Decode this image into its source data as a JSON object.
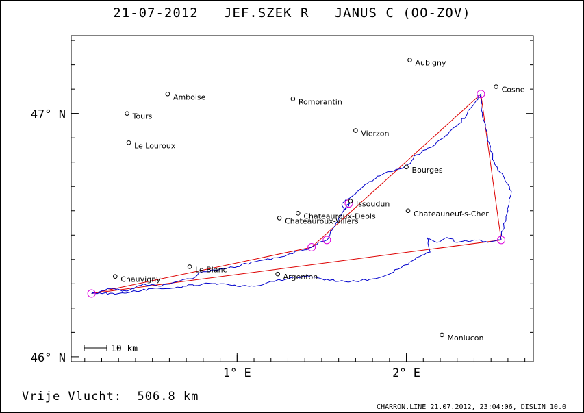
{
  "title": "21-07-2012   JEF.SZEK R   JANUS C (OO-ZOV)",
  "distance_text": "Vrije Vlucht:  506.8 km",
  "footer_text": "CHARRON.LINE 21.07.2012, 23:04:06, DISLIN 10.0",
  "scale_label": "10 km",
  "colors": {
    "track": "#0000cc",
    "task": "#dd0000",
    "turnpoint": "#dd00dd",
    "frame": "#000000"
  },
  "axes": {
    "lon_range": [
      0.02,
      2.75
    ],
    "lat_range": [
      45.98,
      47.32
    ],
    "lat_ticks": [
      {
        "value": 46.0,
        "label": "46° N"
      },
      {
        "value": 47.0,
        "label": "47° N"
      }
    ],
    "lon_ticks": [
      {
        "value": 1.0,
        "label": "1° E"
      },
      {
        "value": 2.0,
        "label": "2° E"
      }
    ]
  },
  "cities": [
    {
      "name": "Aubigny",
      "lon": 2.02,
      "lat": 47.22
    },
    {
      "name": "Cosne",
      "lon": 2.53,
      "lat": 47.11
    },
    {
      "name": "Amboise",
      "lon": 0.59,
      "lat": 47.08
    },
    {
      "name": "Romorantin",
      "lon": 1.33,
      "lat": 47.06
    },
    {
      "name": "Tours",
      "lon": 0.35,
      "lat": 47.0
    },
    {
      "name": "Vierzon",
      "lon": 1.7,
      "lat": 46.93
    },
    {
      "name": "Le Louroux",
      "lon": 0.36,
      "lat": 46.88
    },
    {
      "name": "Bourges",
      "lon": 2.0,
      "lat": 46.78
    },
    {
      "name": "Issoudun",
      "lon": 1.67,
      "lat": 46.64
    },
    {
      "name": "Chateauroux-Deols",
      "lon": 1.36,
      "lat": 46.59
    },
    {
      "name": "Chateauneuf-s-Cher",
      "lon": 2.01,
      "lat": 46.6
    },
    {
      "name": "Chateauroux-Villers",
      "lon": 1.25,
      "lat": 46.57
    },
    {
      "name": "Le Blanc",
      "lon": 0.72,
      "lat": 46.37
    },
    {
      "name": "Chauvigny",
      "lon": 0.28,
      "lat": 46.33
    },
    {
      "name": "Argenton",
      "lon": 1.24,
      "lat": 46.34
    },
    {
      "name": "Monlucon",
      "lon": 2.21,
      "lat": 46.09
    }
  ],
  "turnpoints": [
    {
      "lon": 0.14,
      "lat": 46.26
    },
    {
      "lon": 1.44,
      "lat": 46.45
    },
    {
      "lon": 1.53,
      "lat": 46.48
    },
    {
      "lon": 1.66,
      "lat": 46.63
    },
    {
      "lon": 2.44,
      "lat": 47.08
    },
    {
      "lon": 2.56,
      "lat": 46.48
    }
  ],
  "task_route": [
    {
      "lon": 0.14,
      "lat": 46.26
    },
    {
      "lon": 1.44,
      "lat": 46.45
    },
    {
      "lon": 2.44,
      "lat": 47.08
    },
    {
      "lon": 2.56,
      "lat": 46.48
    },
    {
      "lon": 0.14,
      "lat": 46.26
    }
  ],
  "track": [
    {
      "lon": 0.14,
      "lat": 46.26
    },
    {
      "lon": 0.25,
      "lat": 46.28
    },
    {
      "lon": 0.35,
      "lat": 46.27
    },
    {
      "lon": 0.45,
      "lat": 46.3
    },
    {
      "lon": 0.55,
      "lat": 46.29
    },
    {
      "lon": 0.65,
      "lat": 46.31
    },
    {
      "lon": 0.72,
      "lat": 46.32
    },
    {
      "lon": 0.8,
      "lat": 46.35
    },
    {
      "lon": 0.9,
      "lat": 46.36
    },
    {
      "lon": 1.0,
      "lat": 46.37
    },
    {
      "lon": 1.1,
      "lat": 46.39
    },
    {
      "lon": 1.2,
      "lat": 46.4
    },
    {
      "lon": 1.3,
      "lat": 46.42
    },
    {
      "lon": 1.4,
      "lat": 46.44
    },
    {
      "lon": 1.44,
      "lat": 46.45
    },
    {
      "lon": 1.48,
      "lat": 46.47
    },
    {
      "lon": 1.53,
      "lat": 46.48
    },
    {
      "lon": 1.56,
      "lat": 46.52
    },
    {
      "lon": 1.6,
      "lat": 46.57
    },
    {
      "lon": 1.64,
      "lat": 46.61
    },
    {
      "lon": 1.67,
      "lat": 46.64
    },
    {
      "lon": 1.66,
      "lat": 46.62
    },
    {
      "lon": 1.63,
      "lat": 46.6
    },
    {
      "lon": 1.62,
      "lat": 46.63
    },
    {
      "lon": 1.66,
      "lat": 46.65
    },
    {
      "lon": 1.7,
      "lat": 46.67
    },
    {
      "lon": 1.78,
      "lat": 46.72
    },
    {
      "lon": 1.86,
      "lat": 46.75
    },
    {
      "lon": 1.94,
      "lat": 46.77
    },
    {
      "lon": 2.0,
      "lat": 46.78
    },
    {
      "lon": 2.06,
      "lat": 46.83
    },
    {
      "lon": 2.14,
      "lat": 46.86
    },
    {
      "lon": 2.22,
      "lat": 46.9
    },
    {
      "lon": 2.3,
      "lat": 46.95
    },
    {
      "lon": 2.36,
      "lat": 47.0
    },
    {
      "lon": 2.41,
      "lat": 47.05
    },
    {
      "lon": 2.44,
      "lat": 47.08
    },
    {
      "lon": 2.45,
      "lat": 47.0
    },
    {
      "lon": 2.48,
      "lat": 46.9
    },
    {
      "lon": 2.52,
      "lat": 46.8
    },
    {
      "lon": 2.58,
      "lat": 46.73
    },
    {
      "lon": 2.62,
      "lat": 46.68
    },
    {
      "lon": 2.6,
      "lat": 46.6
    },
    {
      "lon": 2.57,
      "lat": 46.52
    },
    {
      "lon": 2.56,
      "lat": 46.48
    },
    {
      "lon": 2.48,
      "lat": 46.47
    },
    {
      "lon": 2.4,
      "lat": 46.48
    },
    {
      "lon": 2.3,
      "lat": 46.47
    },
    {
      "lon": 2.24,
      "lat": 46.49
    },
    {
      "lon": 2.18,
      "lat": 46.47
    },
    {
      "lon": 2.12,
      "lat": 46.49
    },
    {
      "lon": 2.14,
      "lat": 46.43
    },
    {
      "lon": 2.05,
      "lat": 46.4
    },
    {
      "lon": 1.95,
      "lat": 46.36
    },
    {
      "lon": 1.9,
      "lat": 46.34
    },
    {
      "lon": 1.8,
      "lat": 46.32
    },
    {
      "lon": 1.7,
      "lat": 46.31
    },
    {
      "lon": 1.6,
      "lat": 46.31
    },
    {
      "lon": 1.5,
      "lat": 46.32
    },
    {
      "lon": 1.4,
      "lat": 46.33
    },
    {
      "lon": 1.3,
      "lat": 46.32
    },
    {
      "lon": 1.2,
      "lat": 46.31
    },
    {
      "lon": 1.1,
      "lat": 46.29
    },
    {
      "lon": 1.0,
      "lat": 46.29
    },
    {
      "lon": 0.9,
      "lat": 46.3
    },
    {
      "lon": 0.8,
      "lat": 46.3
    },
    {
      "lon": 0.7,
      "lat": 46.29
    },
    {
      "lon": 0.6,
      "lat": 46.28
    },
    {
      "lon": 0.5,
      "lat": 46.28
    },
    {
      "lon": 0.4,
      "lat": 46.27
    },
    {
      "lon": 0.3,
      "lat": 46.26
    },
    {
      "lon": 0.14,
      "lat": 46.26
    }
  ]
}
